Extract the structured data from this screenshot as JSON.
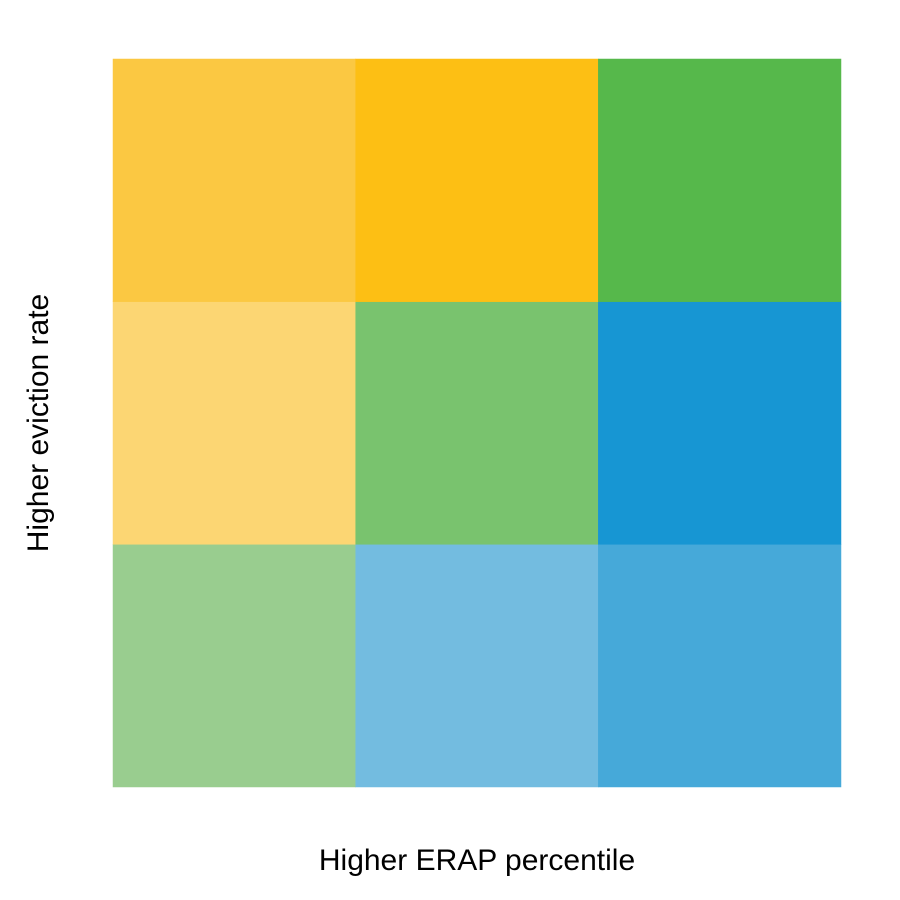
{
  "chart_data": {
    "type": "heatmap",
    "title": "",
    "xlabel": "Higher ERAP percentile",
    "ylabel": "Higher eviction rate",
    "grid": false,
    "legend": "none",
    "columns": 3,
    "rows": 3,
    "cells_bottom_to_top": [
      [
        "#99cd8f",
        "#73bce0",
        "#46a9d9"
      ],
      [
        "#fcd673",
        "#79c36e",
        "#1796d3"
      ],
      [
        "#fbc842",
        "#fdbf14",
        "#56b84b"
      ]
    ]
  }
}
